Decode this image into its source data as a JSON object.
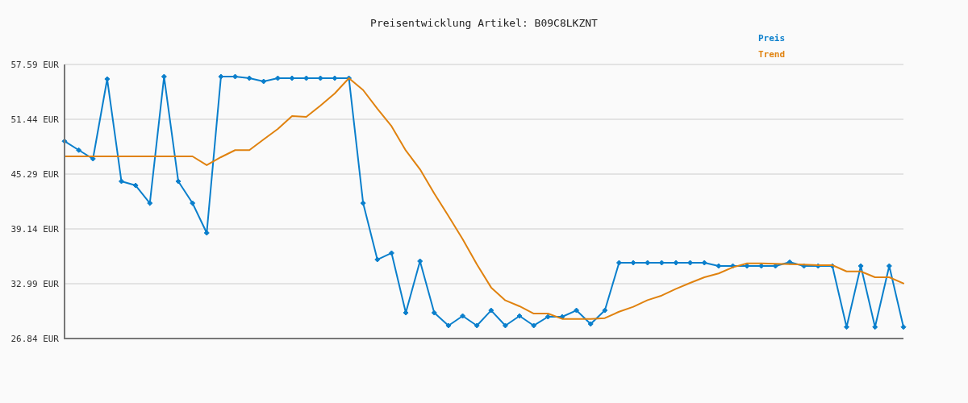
{
  "chart_data": {
    "type": "line",
    "title": "Preisentwicklung Artikel: B09C8LKZNT",
    "categories": [
      null,
      null,
      null,
      null,
      null,
      null,
      null,
      null,
      null,
      null,
      null,
      null,
      null,
      null,
      null,
      null,
      null,
      null,
      null,
      null,
      null,
      null,
      null,
      null,
      null,
      null,
      null,
      null,
      null,
      null,
      null,
      null,
      null,
      null,
      null,
      null,
      null,
      null,
      null,
      null,
      null,
      null,
      null,
      null,
      null,
      null,
      null,
      null,
      null,
      null,
      null,
      null,
      null,
      null,
      null,
      null,
      null,
      null,
      null,
      null
    ],
    "ylim": [
      26.84,
      57.59
    ],
    "yticks": [
      {
        "value": 26.84,
        "label": "26.84 EUR"
      },
      {
        "value": 32.99,
        "label": "32.99 EUR"
      },
      {
        "value": 39.14,
        "label": "39.14 EUR"
      },
      {
        "value": 45.29,
        "label": "45.29 EUR"
      },
      {
        "value": 51.44,
        "label": "51.44 EUR"
      },
      {
        "value": 57.59,
        "label": "57.59 EUR"
      }
    ],
    "grid": "y",
    "legend": "top right",
    "line_style": "solid",
    "series": [
      {
        "name": "Preis",
        "color": "#0a7fcc",
        "marker": "diamond",
        "values": [
          48.98,
          47.98,
          47.01,
          55.96,
          44.48,
          44.02,
          42.03,
          56.23,
          44.48,
          42.03,
          38.69,
          56.23,
          56.23,
          56.05,
          55.69,
          56.05,
          56.05,
          56.05,
          56.05,
          56.05,
          56.05,
          42.03,
          35.7,
          36.43,
          29.73,
          35.52,
          29.73,
          28.29,
          29.37,
          28.29,
          30.0,
          28.29,
          29.37,
          28.29,
          29.28,
          29.28,
          30.0,
          28.47,
          30.0,
          35.34,
          35.34,
          35.34,
          35.34,
          35.34,
          35.34,
          35.34,
          34.98,
          34.98,
          34.98,
          34.98,
          34.98,
          35.41,
          34.98,
          34.98,
          34.98,
          28.13,
          34.98,
          28.13,
          34.98,
          28.13
        ]
      },
      {
        "name": "Trend",
        "color": "#e0820f",
        "marker": "none",
        "values": [
          47.28,
          47.28,
          47.28,
          47.28,
          47.28,
          47.28,
          47.28,
          47.28,
          47.28,
          47.28,
          46.29,
          47.19,
          47.98,
          47.98,
          49.18,
          50.35,
          51.8,
          51.71,
          52.98,
          54.33,
          56.05,
          54.72,
          52.62,
          50.65,
          47.94,
          45.83,
          43.12,
          40.59,
          37.99,
          35.16,
          32.57,
          31.12,
          30.46,
          29.64,
          29.64,
          29.04,
          29.04,
          29.04,
          29.13,
          29.85,
          30.4,
          31.15,
          31.66,
          32.42,
          33.08,
          33.71,
          34.14,
          34.83,
          35.28,
          35.28,
          35.22,
          35.19,
          35.13,
          35.07,
          35.07,
          34.37,
          34.37,
          33.71,
          33.71,
          33.02
        ]
      }
    ]
  }
}
